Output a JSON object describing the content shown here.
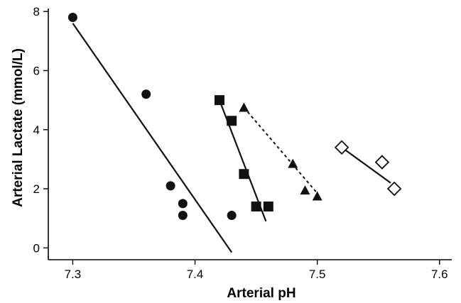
{
  "chart_data": {
    "type": "scatter",
    "title": "",
    "xlabel": "Arterial pH",
    "ylabel": "Arterial Lactate (mmol/L)",
    "xlim": [
      7.28,
      7.61
    ],
    "ylim": [
      -0.4,
      8.1
    ],
    "xticks": [
      7.3,
      7.4,
      7.5,
      7.6
    ],
    "xtick_labels": [
      "7.3",
      "7.4",
      "7.5",
      "7.6"
    ],
    "yticks": [
      0,
      2,
      4,
      6,
      8
    ],
    "ytick_labels": [
      "0",
      "2",
      "4",
      "6",
      "8"
    ],
    "grid": false,
    "legend": "none",
    "series": [
      {
        "marker": "circle",
        "filled": true,
        "color": "#111111",
        "line_style": "solid",
        "points": [
          [
            7.3,
            7.8
          ],
          [
            7.36,
            5.2
          ],
          [
            7.38,
            2.1
          ],
          [
            7.39,
            1.5
          ],
          [
            7.39,
            1.1
          ],
          [
            7.43,
            1.1
          ]
        ],
        "fit": [
          [
            7.3,
            7.6
          ],
          [
            7.43,
            -0.15
          ]
        ]
      },
      {
        "marker": "square",
        "filled": true,
        "color": "#111111",
        "line_style": "solid",
        "points": [
          [
            7.42,
            5.0
          ],
          [
            7.43,
            4.3
          ],
          [
            7.44,
            2.5
          ],
          [
            7.45,
            1.4
          ],
          [
            7.46,
            1.4
          ]
        ],
        "fit": [
          [
            7.42,
            5.0
          ],
          [
            7.458,
            0.9
          ]
        ]
      },
      {
        "marker": "triangle",
        "filled": true,
        "color": "#111111",
        "line_style": "dashed",
        "points": [
          [
            7.44,
            4.75
          ],
          [
            7.48,
            2.85
          ],
          [
            7.49,
            1.95
          ],
          [
            7.5,
            1.75
          ]
        ],
        "fit": [
          [
            7.44,
            4.75
          ],
          [
            7.5,
            1.85
          ]
        ]
      },
      {
        "marker": "diamond",
        "filled": false,
        "color": "#111111",
        "line_style": "solid",
        "points": [
          [
            7.52,
            3.4
          ],
          [
            7.553,
            2.9
          ],
          [
            7.563,
            2.0
          ]
        ],
        "fit": [
          [
            7.52,
            3.4
          ],
          [
            7.56,
            2.2
          ]
        ]
      }
    ]
  }
}
